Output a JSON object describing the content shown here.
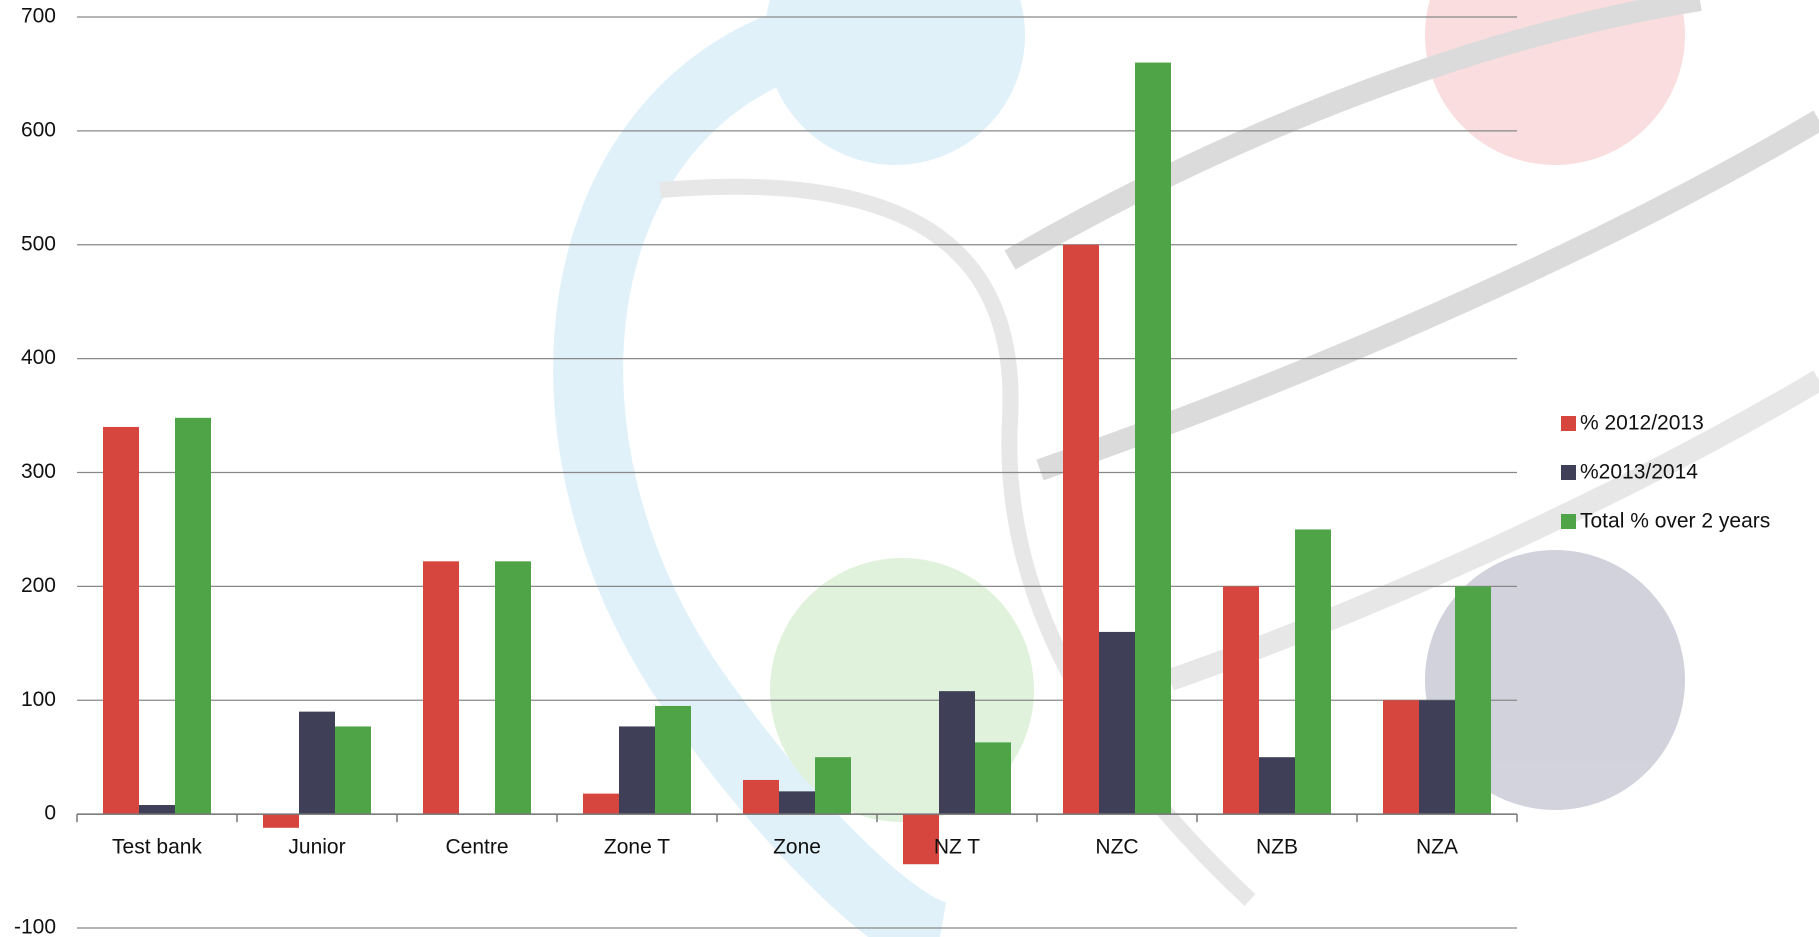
{
  "chart_data": {
    "type": "bar",
    "categories": [
      "Test bank",
      "Junior",
      "Centre",
      "Zone T",
      "Zone",
      "NZ T",
      "NZC",
      "NZB",
      "NZA"
    ],
    "series": [
      {
        "name": "% 2012/2013",
        "color": "#d6463f",
        "values": [
          340,
          -12,
          222,
          18,
          30,
          -44,
          500,
          200,
          100
        ]
      },
      {
        "name": "%2013/2014",
        "color": "#3f4058",
        "values": [
          8,
          90,
          0,
          77,
          20,
          108,
          160,
          50,
          100
        ]
      },
      {
        "name": "Total % over 2 years",
        "color": "#4ea447",
        "values": [
          348,
          77,
          222,
          95,
          50,
          63,
          660,
          250,
          200
        ]
      }
    ],
    "ylim": [
      -100,
      700
    ],
    "yticks": [
      -100,
      0,
      100,
      200,
      300,
      400,
      500,
      600,
      700
    ],
    "grid": true,
    "legend": "right"
  }
}
